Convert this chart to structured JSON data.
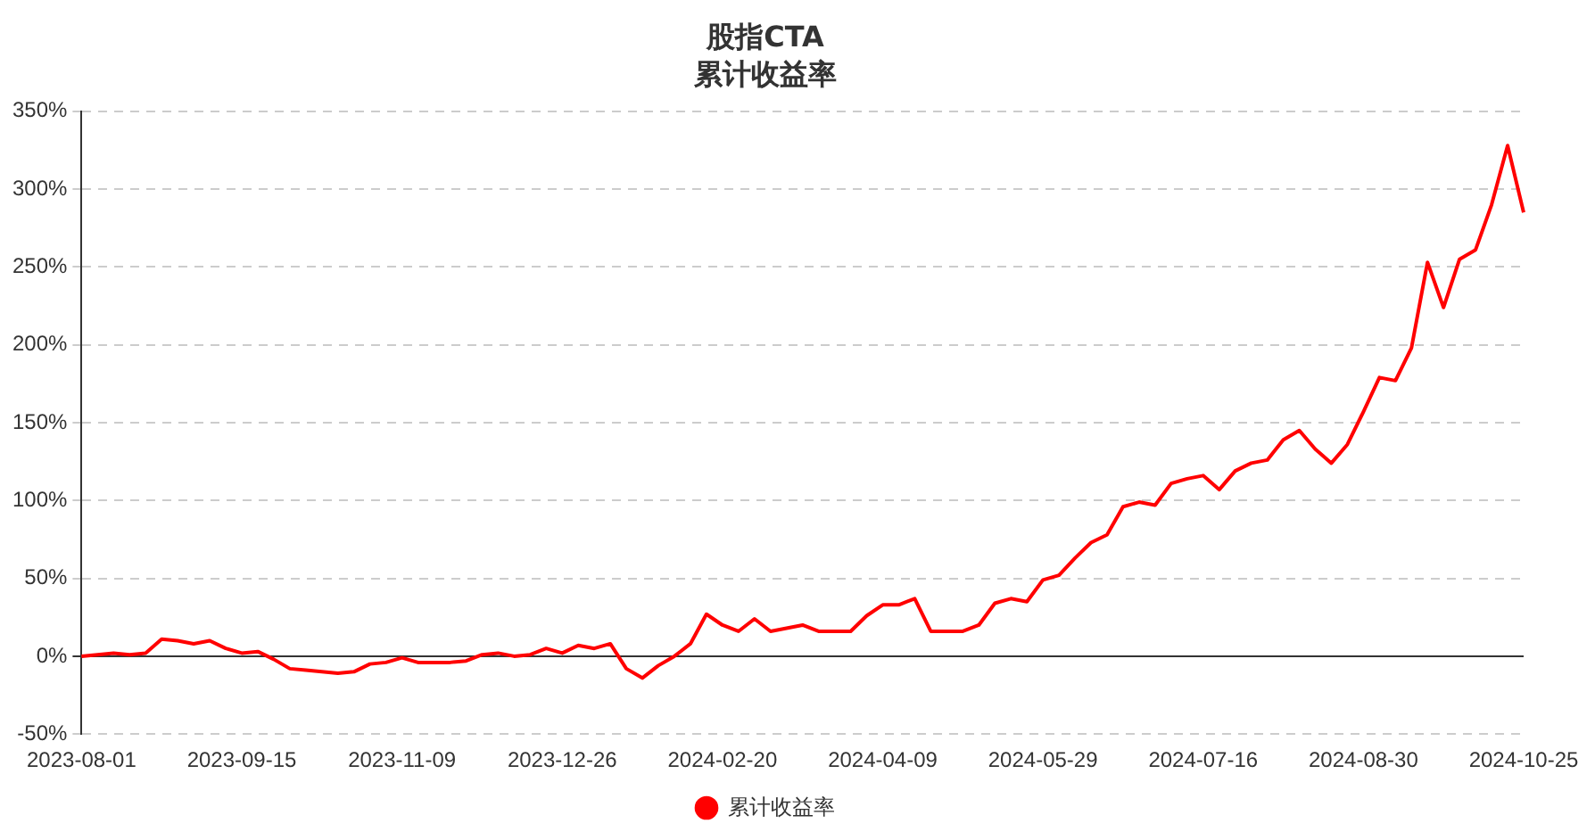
{
  "chart_data": {
    "type": "line",
    "title": "股指CTA",
    "subtitle": "累计收益率",
    "categories": [
      "2023-08-01",
      null,
      null,
      null,
      null,
      null,
      null,
      null,
      null,
      null,
      "2023-09-15",
      null,
      null,
      null,
      null,
      null,
      null,
      null,
      null,
      null,
      "2023-11-09",
      null,
      null,
      null,
      null,
      null,
      null,
      null,
      null,
      null,
      "2023-12-26",
      null,
      null,
      null,
      null,
      null,
      null,
      null,
      null,
      null,
      "2024-02-20",
      null,
      null,
      null,
      null,
      null,
      null,
      null,
      null,
      null,
      "2024-04-09",
      null,
      null,
      null,
      null,
      null,
      null,
      null,
      null,
      null,
      "2024-05-29",
      null,
      null,
      null,
      null,
      null,
      null,
      null,
      null,
      null,
      "2024-07-16",
      null,
      null,
      null,
      null,
      null,
      null,
      null,
      null,
      null,
      "2024-08-30",
      null,
      null,
      null,
      null,
      null,
      null,
      null,
      null,
      null,
      "2024-10-25"
    ],
    "series": [
      {
        "name": "累计收益率",
        "color": "#ff0000",
        "values": [
          0,
          1,
          2,
          1,
          2,
          11,
          10,
          8,
          10,
          5,
          2,
          3,
          -2,
          -8,
          -9,
          -10,
          -11,
          -10,
          -5,
          -4,
          -1,
          -4,
          -4,
          -4,
          -3,
          1,
          2,
          0,
          1,
          5,
          2,
          7,
          5,
          8,
          -8,
          -14,
          -6,
          0,
          8,
          27,
          20,
          16,
          24,
          16,
          18,
          20,
          16,
          16,
          16,
          26,
          33,
          33,
          37,
          16,
          16,
          16,
          20,
          34,
          37,
          35,
          49,
          52,
          63,
          73,
          78,
          96,
          99,
          97,
          111,
          114,
          116,
          107,
          119,
          124,
          126,
          139,
          145,
          133,
          124,
          136,
          157,
          179,
          177,
          198,
          253,
          224,
          255,
          261,
          290,
          328,
          285
        ]
      }
    ],
    "ylim": [
      -50,
      350
    ],
    "yticks": [
      {
        "value": -50,
        "label": "-50%"
      },
      {
        "value": 0,
        "label": "0%"
      },
      {
        "value": 50,
        "label": "50%"
      },
      {
        "value": 100,
        "label": "100%"
      },
      {
        "value": 150,
        "label": "150%"
      },
      {
        "value": 200,
        "label": "200%"
      },
      {
        "value": 250,
        "label": "250%"
      },
      {
        "value": 300,
        "label": "300%"
      },
      {
        "value": 350,
        "label": "350%"
      }
    ],
    "grid": "y",
    "legend": "bottom",
    "line_style": "solid"
  }
}
